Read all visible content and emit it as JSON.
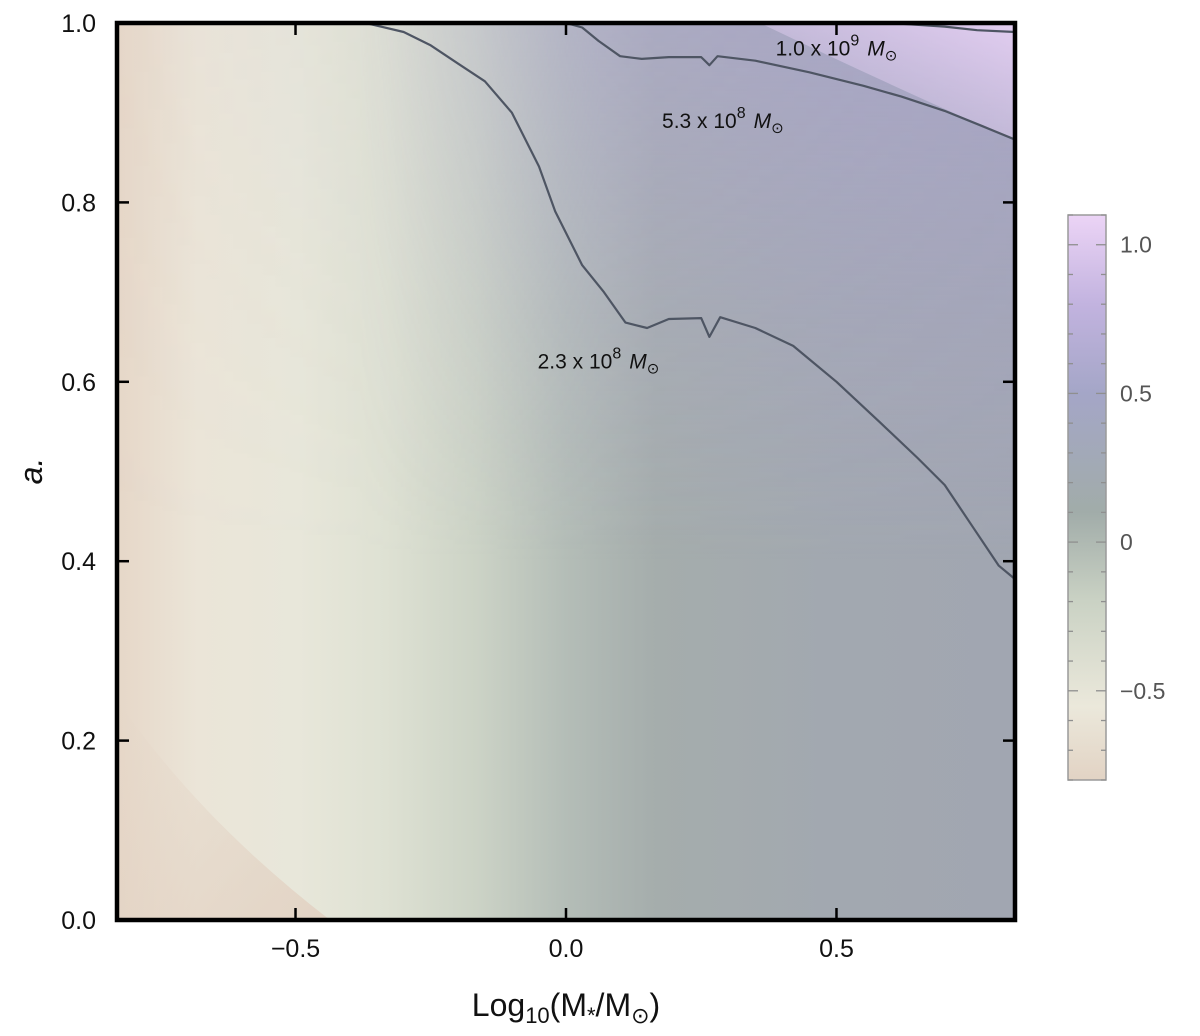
{
  "chart_data": {
    "type": "heatmap",
    "title": "",
    "xlabel": {
      "base": "Log",
      "base_sub": "10",
      "open": "(M",
      "star_sub": "*",
      "mid": "/M",
      "sun_sub": "⊙",
      "close": ")"
    },
    "ylabel": "a.",
    "xlim": [
      -0.83,
      0.83
    ],
    "ylim": [
      0.0,
      1.0
    ],
    "x_ticks": [
      {
        "value": -0.5,
        "label": "−0.5"
      },
      {
        "value": 0.0,
        "label": "0.0"
      },
      {
        "value": 0.5,
        "label": "0.5"
      }
    ],
    "y_ticks": [
      {
        "value": 0.0,
        "label": "0.0"
      },
      {
        "value": 0.2,
        "label": "0.2"
      },
      {
        "value": 0.4,
        "label": "0.4"
      },
      {
        "value": 0.6,
        "label": "0.6"
      },
      {
        "value": 0.8,
        "label": "0.8"
      },
      {
        "value": 1.0,
        "label": "1.0"
      }
    ],
    "grid": false,
    "colorbar": {
      "position": "right",
      "range": [
        -0.8,
        1.1
      ],
      "ticks": [
        {
          "value": 1.0,
          "label": "1.0"
        },
        {
          "value": 0.5,
          "label": "0.5"
        },
        {
          "value": 0.0,
          "label": "0"
        },
        {
          "value": -0.5,
          "label": "−0.5"
        }
      ],
      "stops": [
        {
          "value": -0.8,
          "color": "#e2d3c4"
        },
        {
          "value": -0.55,
          "color": "#ebe8db"
        },
        {
          "value": -0.2,
          "color": "#cad2c4"
        },
        {
          "value": 0.1,
          "color": "#a1aca9"
        },
        {
          "value": 0.5,
          "color": "#a4a6c7"
        },
        {
          "value": 0.8,
          "color": "#c2b3df"
        },
        {
          "value": 1.1,
          "color": "#ecd4f6"
        }
      ]
    },
    "contours": [
      {
        "label": {
          "coef": "2.3 x 10",
          "exp": "8",
          "unit": "M",
          "sub": "⊙"
        },
        "label_at": [
          0.06,
          0.615
        ],
        "points": [
          [
            -0.37,
            1.0
          ],
          [
            -0.3,
            0.99
          ],
          [
            -0.25,
            0.975
          ],
          [
            -0.2,
            0.955
          ],
          [
            -0.15,
            0.935
          ],
          [
            -0.1,
            0.9
          ],
          [
            -0.05,
            0.84
          ],
          [
            -0.02,
            0.79
          ],
          [
            0.03,
            0.73
          ],
          [
            0.07,
            0.7
          ],
          [
            0.11,
            0.666
          ],
          [
            0.15,
            0.66
          ],
          [
            0.19,
            0.67
          ],
          [
            0.25,
            0.671
          ],
          [
            0.265,
            0.65
          ],
          [
            0.285,
            0.672
          ],
          [
            0.35,
            0.66
          ],
          [
            0.42,
            0.64
          ],
          [
            0.5,
            0.6
          ],
          [
            0.58,
            0.555
          ],
          [
            0.65,
            0.515
          ],
          [
            0.7,
            0.485
          ],
          [
            0.75,
            0.44
          ],
          [
            0.8,
            0.395
          ],
          [
            0.83,
            0.38
          ]
        ]
      },
      {
        "label": {
          "coef": "5.3 x 10",
          "exp": "8",
          "unit": "M",
          "sub": "⊙"
        },
        "label_at": [
          0.29,
          0.883
        ],
        "points": [
          [
            0.0,
            1.0
          ],
          [
            0.03,
            0.995
          ],
          [
            0.06,
            0.98
          ],
          [
            0.1,
            0.963
          ],
          [
            0.14,
            0.96
          ],
          [
            0.19,
            0.962
          ],
          [
            0.25,
            0.962
          ],
          [
            0.265,
            0.953
          ],
          [
            0.28,
            0.963
          ],
          [
            0.35,
            0.958
          ],
          [
            0.45,
            0.945
          ],
          [
            0.55,
            0.93
          ],
          [
            0.62,
            0.918
          ],
          [
            0.7,
            0.902
          ],
          [
            0.77,
            0.885
          ],
          [
            0.83,
            0.87
          ]
        ]
      },
      {
        "label": {
          "coef": "1.0 x 10",
          "exp": "9",
          "unit": "M",
          "sub": "⊙"
        },
        "label_at": [
          0.5,
          0.964
        ],
        "points": [
          [
            0.6,
            1.0
          ],
          [
            0.7,
            0.996
          ],
          [
            0.76,
            0.992
          ],
          [
            0.83,
            0.99
          ]
        ]
      }
    ],
    "colors": {
      "contour_line": "#4e5563",
      "frame": "#000000"
    }
  }
}
